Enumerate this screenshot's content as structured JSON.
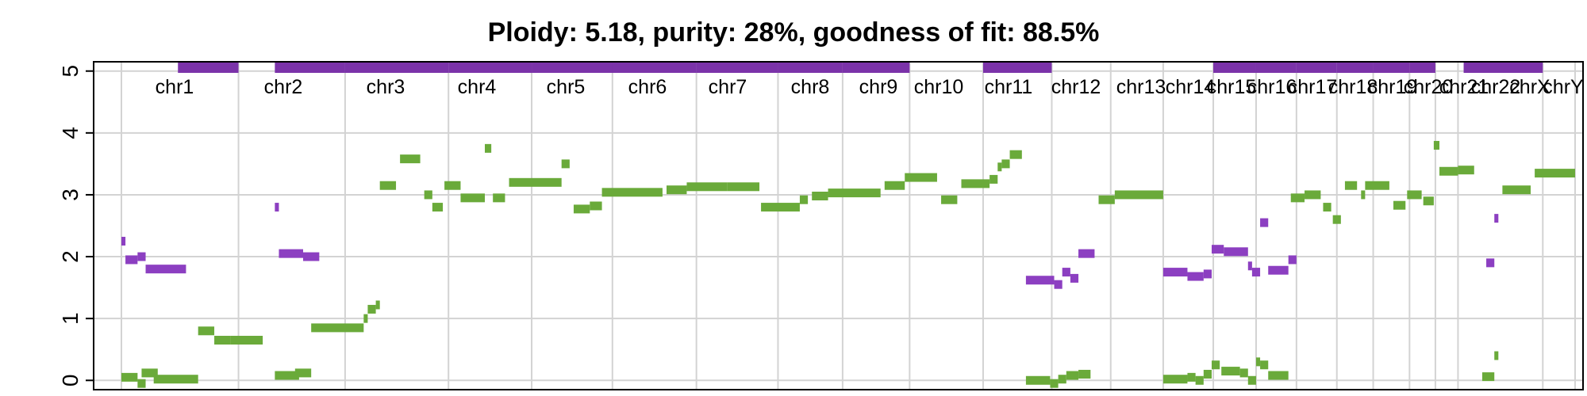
{
  "chart_data": {
    "type": "scatter",
    "title": "Ploidy: 5.18, purity: 28%, goodness of fit: 88.5%",
    "xlabel": "",
    "ylabel": "",
    "ylim": [
      -0.15,
      5.15
    ],
    "y_ticks": [
      "0",
      "1",
      "2",
      "3",
      "4",
      "5"
    ],
    "grid": true,
    "colors": {
      "total": "#6aaa3a",
      "minor": "#8c3fc1",
      "grid": "#d3d3d3",
      "bar": "#7b33a9"
    },
    "chromosomes": [
      {
        "name": "chr1",
        "start": 0,
        "end": 145,
        "top_bar": [
          70,
          145
        ]
      },
      {
        "name": "chr2",
        "start": 145,
        "end": 277,
        "top_bar": [
          190,
          277
        ]
      },
      {
        "name": "chr3",
        "start": 277,
        "end": 405,
        "top_bar": [
          277,
          405
        ]
      },
      {
        "name": "chr4",
        "start": 405,
        "end": 508,
        "top_bar": [
          405,
          508
        ]
      },
      {
        "name": "chr5",
        "start": 508,
        "end": 712,
        "top_bar": [
          508,
          712
        ]
      },
      {
        "name": "chr6",
        "start": 712,
        "end": 608,
        "top_bar": null
      },
      {
        "name": "chr7",
        "start": 608,
        "end": 712,
        "top_bar": [
          608,
          712
        ]
      },
      {
        "name": "chr8",
        "start": 712,
        "end": 813,
        "top_bar": [
          712,
          813
        ]
      },
      {
        "name": "chr9",
        "start": 813,
        "end": 893,
        "top_bar": [
          813,
          893
        ]
      },
      {
        "name": "chr10",
        "start": 893,
        "end": 976,
        "top_bar": [
          893,
          976
        ]
      },
      {
        "name": "chr11",
        "start": 976,
        "end": 1067,
        "top_bar": null
      },
      {
        "name": "chr12",
        "start": 1067,
        "end": 1152,
        "top_bar": [
          1067,
          1152
        ]
      },
      {
        "name": "chr13",
        "start": 1152,
        "end": 1225,
        "top_bar": null
      },
      {
        "name": "chr14",
        "start": 1225,
        "end": 1290,
        "top_bar": null
      },
      {
        "name": "chr15",
        "start": 1290,
        "end": 1352,
        "top_bar": null
      },
      {
        "name": "chr16",
        "start": 1352,
        "end": 1405,
        "top_bar": [
          1352,
          1405
        ]
      },
      {
        "name": "chr17",
        "start": 1405,
        "end": 1455,
        "top_bar": [
          1405,
          1455
        ]
      },
      {
        "name": "chr18",
        "start": 1455,
        "end": 1505,
        "top_bar": [
          1455,
          1505
        ]
      },
      {
        "name": "chr19",
        "start": 1505,
        "end": 1550,
        "top_bar": [
          1505,
          1550
        ]
      },
      {
        "name": "chr20",
        "start": 1550,
        "end": 1595,
        "top_bar": [
          1550,
          1595
        ]
      },
      {
        "name": "chr21",
        "start": 1595,
        "end": 1627,
        "top_bar": [
          1595,
          1627
        ]
      },
      {
        "name": "chr22",
        "start": 1627,
        "end": 1655,
        "top_bar": null
      },
      {
        "name": "chrX",
        "start": 1655,
        "end": 1760,
        "top_bar": [
          1662,
          1760
        ]
      },
      {
        "name": "chrY",
        "start": 1760,
        "end": 1800,
        "top_bar": null
      }
    ],
    "series": [
      {
        "name": "total",
        "segments": [
          [
            0,
            20,
            0.05
          ],
          [
            20,
            30,
            -0.05
          ],
          [
            25,
            45,
            0.12
          ],
          [
            40,
            95,
            0.02
          ],
          [
            95,
            115,
            0.8
          ],
          [
            115,
            135,
            0.65
          ],
          [
            135,
            175,
            0.65
          ],
          [
            190,
            220,
            0.08
          ],
          [
            215,
            235,
            0.12
          ],
          [
            235,
            300,
            0.85
          ],
          [
            300,
            305,
            1.0
          ],
          [
            305,
            315,
            1.15
          ],
          [
            315,
            320,
            1.22
          ],
          [
            320,
            340,
            3.15
          ],
          [
            345,
            370,
            3.58
          ],
          [
            375,
            385,
            3.0
          ],
          [
            385,
            398,
            2.8
          ],
          [
            400,
            420,
            3.15
          ],
          [
            420,
            450,
            2.95
          ],
          [
            450,
            458,
            3.75
          ],
          [
            460,
            475,
            2.95
          ],
          [
            480,
            545,
            3.2
          ],
          [
            545,
            555,
            3.5
          ],
          [
            560,
            580,
            2.77
          ],
          [
            580,
            595,
            2.82
          ],
          [
            595,
            670,
            3.04
          ],
          [
            675,
            700,
            3.08
          ],
          [
            700,
            750,
            3.13
          ],
          [
            750,
            790,
            3.13
          ],
          [
            792,
            840,
            2.8
          ],
          [
            840,
            850,
            2.92
          ],
          [
            855,
            875,
            2.98
          ],
          [
            875,
            940,
            3.03
          ],
          [
            945,
            970,
            3.15
          ],
          [
            970,
            1010,
            3.28
          ],
          [
            1015,
            1035,
            2.92
          ],
          [
            1040,
            1075,
            3.18
          ],
          [
            1075,
            1085,
            3.25
          ],
          [
            1085,
            1090,
            3.45
          ],
          [
            1090,
            1100,
            3.5
          ],
          [
            1100,
            1115,
            3.65
          ],
          [
            1120,
            1150,
            0.0
          ],
          [
            1150,
            1160,
            -0.05
          ],
          [
            1160,
            1170,
            0.02
          ],
          [
            1170,
            1185,
            0.08
          ],
          [
            1185,
            1200,
            0.1
          ],
          [
            1210,
            1230,
            2.92
          ],
          [
            1230,
            1290,
            3.0
          ],
          [
            1290,
            1320,
            0.02
          ],
          [
            1320,
            1330,
            0.05
          ],
          [
            1330,
            1340,
            0.0
          ],
          [
            1340,
            1350,
            0.1
          ],
          [
            1350,
            1360,
            0.25
          ],
          [
            1362,
            1385,
            0.15
          ],
          [
            1385,
            1395,
            0.12
          ],
          [
            1395,
            1405,
            0.0
          ],
          [
            1405,
            1410,
            0.3
          ],
          [
            1410,
            1420,
            0.25
          ],
          [
            1420,
            1445,
            0.08
          ],
          [
            1448,
            1465,
            2.95
          ],
          [
            1465,
            1485,
            3.0
          ],
          [
            1488,
            1498,
            2.8
          ],
          [
            1500,
            1510,
            2.6
          ],
          [
            1515,
            1530,
            3.15
          ],
          [
            1535,
            1540,
            3.0
          ],
          [
            1540,
            1570,
            3.15
          ],
          [
            1575,
            1590,
            2.83
          ],
          [
            1592,
            1610,
            3.0
          ],
          [
            1612,
            1625,
            2.9
          ],
          [
            1625,
            1632,
            3.8
          ],
          [
            1632,
            1655,
            3.38
          ],
          [
            1655,
            1675,
            3.4
          ],
          [
            1685,
            1700,
            0.06
          ],
          [
            1700,
            1705,
            0.4
          ],
          [
            1710,
            1745,
            3.08
          ],
          [
            1750,
            1800,
            3.35
          ]
        ]
      },
      {
        "name": "minor",
        "segments": [
          [
            0,
            5,
            2.25
          ],
          [
            5,
            20,
            1.95
          ],
          [
            20,
            30,
            2.0
          ],
          [
            30,
            80,
            1.8
          ],
          [
            190,
            195,
            2.8
          ],
          [
            195,
            225,
            2.05
          ],
          [
            225,
            245,
            2.0
          ],
          [
            1120,
            1155,
            1.62
          ],
          [
            1155,
            1165,
            1.55
          ],
          [
            1165,
            1175,
            1.75
          ],
          [
            1175,
            1185,
            1.65
          ],
          [
            1185,
            1205,
            2.05
          ],
          [
            1290,
            1320,
            1.75
          ],
          [
            1320,
            1340,
            1.68
          ],
          [
            1340,
            1350,
            1.72
          ],
          [
            1350,
            1365,
            2.12
          ],
          [
            1365,
            1395,
            2.08
          ],
          [
            1395,
            1400,
            1.85
          ],
          [
            1400,
            1410,
            1.75
          ],
          [
            1410,
            1420,
            2.55
          ],
          [
            1420,
            1445,
            1.78
          ],
          [
            1445,
            1455,
            1.95
          ],
          [
            1690,
            1700,
            1.9
          ],
          [
            1700,
            1705,
            2.62
          ]
        ]
      }
    ]
  }
}
